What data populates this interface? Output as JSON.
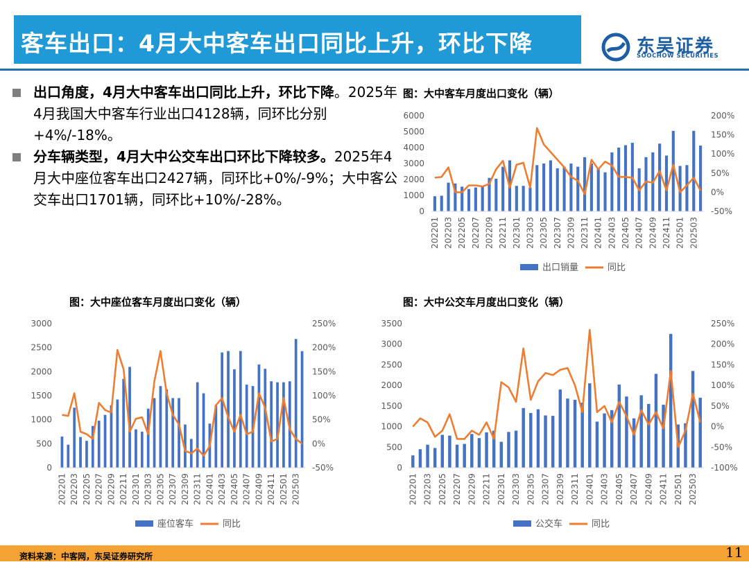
{
  "header": {
    "title": "客车出口：4月大中客车出口同比上升，环比下降",
    "logo_cn": "东吴证券",
    "logo_en": "SOOCHOW SECURITIES",
    "brand_color": "#1f9ad6"
  },
  "bullets": [
    {
      "head": "出口角度，4月大中客车出口同比上升，环比下降",
      "body": "。2025年4月我国大中客车行业出口4128辆，同环比分别+4%/-18%。"
    },
    {
      "head": "分车辆类型，4月大中公交车出口环比下降较多。",
      "body": "2025年4月大中座位客车出口2427辆，同环比+0%/-9%；大中客公交车出口1701辆，同环比+10%/-28%。"
    }
  ],
  "footer": {
    "source": "资料来源：中客网，东吴证券研究所",
    "page": "11"
  },
  "chart_data": [
    {
      "type": "bar",
      "title": "图：大中客车月度出口变化（辆）",
      "categories": [
        "202201",
        "202202",
        "202203",
        "202204",
        "202205",
        "202206",
        "202207",
        "202208",
        "202209",
        "202210",
        "202211",
        "202212",
        "202301",
        "202302",
        "202303",
        "202304",
        "202305",
        "202306",
        "202307",
        "202308",
        "202309",
        "202310",
        "202311",
        "202312",
        "202401",
        "202402",
        "202403",
        "202404",
        "202405",
        "202406",
        "202407",
        "202408",
        "202409",
        "202410",
        "202411",
        "202412",
        "202501",
        "202502",
        "202503",
        "202504"
      ],
      "xtick_labels": [
        "202201",
        "202203",
        "202205",
        "202207",
        "202209",
        "202211",
        "202301",
        "202303",
        "202305",
        "202307",
        "202309",
        "202311",
        "202401",
        "202403",
        "202405",
        "202407",
        "202409",
        "202411",
        "202501",
        "202503"
      ],
      "series": [
        {
          "name": "出口销量",
          "kind": "bar",
          "axis": "left",
          "color": "#4472c4",
          "values": [
            950,
            980,
            1800,
            1750,
            1550,
            1400,
            1500,
            1550,
            2100,
            2050,
            2800,
            3200,
            1600,
            1600,
            1500,
            2900,
            3000,
            3200,
            2700,
            2800,
            3000,
            2800,
            3400,
            3000,
            2650,
            2450,
            3700,
            4000,
            4150,
            4300,
            2700,
            3400,
            3700,
            4250,
            3500,
            5050,
            2850,
            2900,
            5050,
            4128
          ]
        },
        {
          "name": "同比",
          "kind": "line",
          "axis": "right",
          "color": "#ed7d31",
          "values": [
            0.38,
            0.4,
            0.65,
            0.0,
            0.0,
            0.18,
            0.18,
            0.15,
            0.22,
            0.6,
            0.82,
            0.12,
            0.72,
            0.77,
            0.12,
            1.68,
            1.25,
            1.05,
            0.85,
            0.65,
            0.4,
            0.3,
            -0.05,
            0.85,
            0.6,
            0.8,
            0.7,
            0.4,
            0.4,
            0.38,
            0.05,
            0.28,
            0.25,
            0.55,
            0.05,
            0.72,
            0.0,
            0.18,
            0.38,
            0.04
          ]
        }
      ],
      "ylim_left": [
        0,
        6000
      ],
      "yticks_left": [
        0,
        1000,
        2000,
        3000,
        4000,
        5000,
        6000
      ],
      "ylim_right": [
        -0.5,
        2.0
      ],
      "yticks_right": [
        "-50%",
        "0%",
        "50%",
        "100%",
        "150%",
        "200%"
      ],
      "legend": "bottom"
    },
    {
      "type": "bar",
      "title": "图：大中座位客车月度出口变化（辆）",
      "categories": [
        "202201",
        "202202",
        "202203",
        "202204",
        "202205",
        "202206",
        "202207",
        "202208",
        "202209",
        "202210",
        "202211",
        "202212",
        "202301",
        "202302",
        "202303",
        "202304",
        "202305",
        "202306",
        "202307",
        "202308",
        "202309",
        "202310",
        "202311",
        "202312",
        "202401",
        "202402",
        "202403",
        "202404",
        "202405",
        "202406",
        "202407",
        "202408",
        "202409",
        "202410",
        "202411",
        "202412",
        "202501",
        "202502",
        "202503",
        "202504"
      ],
      "xtick_labels": [
        "202201",
        "202203",
        "202205",
        "202207",
        "202209",
        "202211",
        "202301",
        "202303",
        "202305",
        "202307",
        "202309",
        "202311",
        "202401",
        "202403",
        "202405",
        "202407",
        "202409",
        "202411",
        "202501",
        "202503"
      ],
      "series": [
        {
          "name": "座位客车",
          "kind": "bar",
          "axis": "left",
          "color": "#4472c4",
          "values": [
            650,
            480,
            1250,
            640,
            560,
            870,
            980,
            1100,
            1300,
            1420,
            1850,
            2100,
            800,
            750,
            1230,
            1450,
            1700,
            1630,
            1450,
            1450,
            900,
            600,
            1780,
            1550,
            920,
            1300,
            2400,
            2430,
            2050,
            2430,
            1730,
            1700,
            2150,
            2060,
            1800,
            1780,
            1780,
            1800,
            2680,
            2427
          ]
        },
        {
          "name": "同比",
          "kind": "line",
          "axis": "right",
          "color": "#ed7d31",
          "values": [
            0.6,
            0.58,
            1.05,
            0.25,
            0.2,
            0.1,
            0.85,
            0.7,
            0.65,
            1.95,
            1.55,
            0.25,
            0.52,
            0.55,
            0.2,
            1.3,
            1.93,
            1.05,
            0.6,
            0.4,
            -0.15,
            -0.2,
            -0.1,
            -0.25,
            -0.05,
            0.8,
            0.95,
            0.55,
            0.25,
            0.6,
            0.2,
            0.25,
            1.05,
            0.75,
            0.05,
            0.1,
            0.95,
            0.3,
            0.1,
            0.0
          ]
        }
      ],
      "ylim_left": [
        0,
        3000
      ],
      "yticks_left": [
        0,
        500,
        1000,
        1500,
        2000,
        2500,
        3000
      ],
      "ylim_right": [
        -0.5,
        2.5
      ],
      "yticks_right": [
        "-50%",
        "0%",
        "50%",
        "100%",
        "150%",
        "200%",
        "250%"
      ],
      "legend": "bottom"
    },
    {
      "type": "bar",
      "title": "图：大中公交车月度出口变化（辆）",
      "categories": [
        "202201",
        "202202",
        "202203",
        "202204",
        "202205",
        "202206",
        "202207",
        "202208",
        "202209",
        "202210",
        "202211",
        "202212",
        "202301",
        "202302",
        "202303",
        "202304",
        "202305",
        "202306",
        "202307",
        "202308",
        "202309",
        "202310",
        "202311",
        "202312",
        "202401",
        "202402",
        "202403",
        "202404",
        "202405",
        "202406",
        "202407",
        "202408",
        "202409",
        "202410",
        "202411",
        "202412",
        "202501",
        "202502",
        "202503",
        "202504"
      ],
      "xtick_labels": [
        "202201",
        "202203",
        "202205",
        "202207",
        "202209",
        "202211",
        "202301",
        "202303",
        "202305",
        "202307",
        "202309",
        "202311",
        "202401",
        "202403",
        "202405",
        "202407",
        "202409",
        "202411",
        "202501",
        "202503"
      ],
      "series": [
        {
          "name": "公交车",
          "kind": "bar",
          "axis": "left",
          "color": "#4472c4",
          "values": [
            300,
            450,
            560,
            480,
            800,
            780,
            560,
            580,
            820,
            720,
            860,
            900,
            630,
            870,
            900,
            1450,
            1330,
            1420,
            1270,
            1260,
            1900,
            1680,
            1650,
            1580,
            2050,
            1120,
            1320,
            1400,
            2020,
            1730,
            1200,
            1760,
            1550,
            2280,
            1530,
            3250,
            1050,
            1080,
            2350,
            1701
          ]
        },
        {
          "name": "同比",
          "kind": "line",
          "axis": "right",
          "color": "#ed7d31",
          "values": [
            0.0,
            0.2,
            0.1,
            -0.25,
            -0.1,
            0.3,
            -0.3,
            -0.3,
            -0.1,
            -0.2,
            0.1,
            -0.3,
            1.08,
            0.95,
            0.6,
            1.9,
            0.65,
            1.1,
            1.3,
            1.25,
            1.38,
            1.42,
            1.0,
            0.35,
            2.35,
            0.35,
            0.5,
            0.1,
            0.6,
            0.25,
            -0.2,
            0.4,
            0.05,
            0.35,
            -0.05,
            1.35,
            -0.5,
            -0.1,
            0.8,
            0.1
          ]
        }
      ],
      "ylim_left": [
        0,
        3500
      ],
      "yticks_left": [
        0,
        500,
        1000,
        1500,
        2000,
        2500,
        3000,
        3500
      ],
      "ylim_right": [
        -1.0,
        2.5
      ],
      "yticks_right": [
        "-100%",
        "-50%",
        "0%",
        "50%",
        "100%",
        "150%",
        "200%",
        "250%"
      ],
      "legend": "bottom"
    }
  ]
}
